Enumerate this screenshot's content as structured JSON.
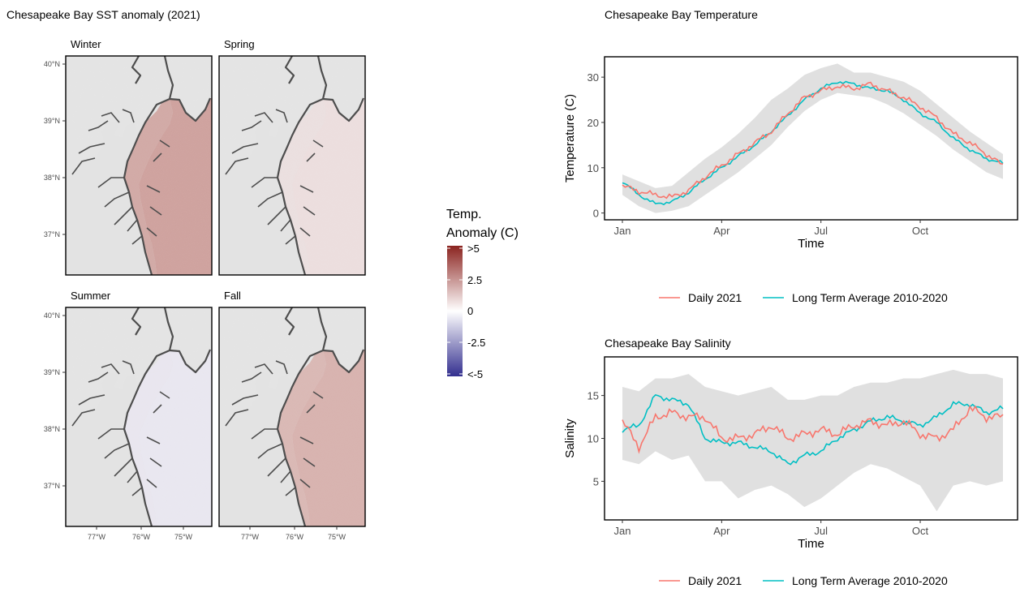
{
  "figure": {
    "map_title": "Chesapeake Bay SST anomaly (2021)",
    "temp_title": "Chesapeake Bay Temperature",
    "sal_title": "Chesapeake Bay Salinity"
  },
  "map_panels": {
    "facets": [
      "Winter",
      "Spring",
      "Summer",
      "Fall"
    ],
    "lat_ticks": [
      "40°N",
      "39°N",
      "38°N",
      "37°N"
    ],
    "lon_ticks": [
      "77°W",
      "76°W",
      "75°W"
    ],
    "anomaly_tint": {
      "Winter": "#c9938e",
      "Spring": "#ecdcdc",
      "Summer": "#e9e6f1",
      "Fall": "#d4a7a2"
    },
    "land_color": "#e3e3e3",
    "coast_color": "#4d4d4d"
  },
  "legend_colorbar": {
    "title_line1": "Temp.",
    "title_line2": "Anomaly (C)",
    "labels": [
      ">5",
      "2.5",
      "0",
      "-2.5",
      "<-5"
    ],
    "colors": {
      "high": "#8b2420",
      "mid": "#ffffff",
      "low": "#332f8f"
    }
  },
  "legend_series": {
    "daily": "Daily 2021",
    "average": "Long Term Average 2010-2020",
    "daily_color": "#f8766d",
    "average_color": "#00bfc4",
    "ribbon_color": "#e0e0e0"
  },
  "chart_data": [
    {
      "type": "line",
      "title": "Chesapeake Bay Temperature",
      "xlabel": "Time",
      "ylabel": "Temperature (C)",
      "x_ticks": [
        "Jan",
        "Apr",
        "Jul",
        "Oct"
      ],
      "y_ticks": [
        0,
        10,
        20,
        30
      ],
      "ylim": [
        -1.5,
        34.5
      ],
      "grid": false,
      "legend": "bottom",
      "x": [
        "Jan 1",
        "Jan 15",
        "Feb 1",
        "Feb 15",
        "Mar 1",
        "Mar 15",
        "Apr 1",
        "Apr 15",
        "May 1",
        "May 15",
        "Jun 1",
        "Jun 15",
        "Jul 1",
        "Jul 15",
        "Aug 1",
        "Aug 15",
        "Sep 1",
        "Sep 15",
        "Oct 1",
        "Oct 15",
        "Nov 1",
        "Nov 15",
        "Dec 1",
        "Dec 15"
      ],
      "series": [
        {
          "name": "Daily 2021",
          "values": [
            6,
            4.8,
            4,
            3.5,
            5,
            8,
            10.5,
            13,
            15.5,
            18,
            22,
            25.5,
            27,
            28,
            27.5,
            28.5,
            27,
            25.5,
            23.5,
            21,
            17.5,
            15.5,
            13,
            10.5
          ]
        },
        {
          "name": "Long Term Average 2010-2020",
          "values": [
            7,
            4,
            2,
            2.5,
            4.5,
            7.5,
            10,
            12.5,
            15,
            18,
            21.5,
            25,
            27.5,
            29,
            28.5,
            27.5,
            27,
            25,
            22,
            20,
            16.5,
            14,
            12,
            11
          ]
        },
        {
          "name": "range_low",
          "values": [
            4,
            1.5,
            0,
            0.5,
            1.5,
            4,
            6.5,
            9,
            12,
            15,
            19,
            22.5,
            25,
            26.5,
            26,
            25.5,
            24,
            22,
            19.5,
            17,
            14,
            11.5,
            9,
            7.5
          ]
        },
        {
          "name": "range_high",
          "values": [
            8.5,
            7,
            5.5,
            6,
            9,
            12,
            14.5,
            17.5,
            21,
            25,
            27.5,
            30.5,
            32,
            33,
            31,
            31,
            30,
            29,
            27,
            24,
            21,
            18,
            15.5,
            13
          ]
        }
      ]
    },
    {
      "type": "line",
      "title": "Chesapeake Bay Salinity",
      "xlabel": "Time",
      "ylabel": "Salinity",
      "x_ticks": [
        "Jan",
        "Apr",
        "Jul",
        "Oct"
      ],
      "y_ticks": [
        5,
        10,
        15
      ],
      "ylim": [
        0.5,
        19.5
      ],
      "grid": false,
      "legend": "bottom",
      "x": [
        "Jan 1",
        "Jan 15",
        "Feb 1",
        "Feb 15",
        "Mar 1",
        "Mar 15",
        "Apr 1",
        "Apr 15",
        "May 1",
        "May 15",
        "Jun 1",
        "Jun 15",
        "Jul 1",
        "Jul 15",
        "Aug 1",
        "Aug 15",
        "Sep 1",
        "Sep 15",
        "Oct 1",
        "Oct 15",
        "Nov 1",
        "Nov 15",
        "Dec 1",
        "Dec 15"
      ],
      "series": [
        {
          "name": "Daily 2021",
          "values": [
            12,
            9,
            12.5,
            13,
            12.5,
            12.5,
            10,
            10,
            10.5,
            11.5,
            10,
            10.5,
            11,
            10.5,
            11.5,
            12,
            11.5,
            12,
            10.5,
            10,
            11,
            13.5,
            12.5,
            12.5
          ]
        },
        {
          "name": "Long Term Average 2010-2020",
          "values": [
            11,
            11.5,
            15,
            14.5,
            14,
            10,
            9.5,
            9.5,
            9,
            8.5,
            7,
            8,
            8.5,
            10,
            11,
            12,
            12.5,
            12,
            11.5,
            12.5,
            14,
            14,
            13,
            13.5
          ]
        },
        {
          "name": "range_low",
          "values": [
            7.5,
            7,
            8.5,
            7.5,
            8,
            5,
            5,
            3,
            4,
            4.5,
            3.5,
            2,
            3,
            4.5,
            6,
            7,
            6.5,
            5.5,
            4.5,
            1.5,
            4.5,
            5,
            4.5,
            5
          ]
        },
        {
          "name": "range_high",
          "values": [
            16,
            15.5,
            17,
            17,
            17.5,
            16,
            15.5,
            15,
            15.5,
            16,
            14.5,
            14.5,
            15,
            15,
            16,
            16.5,
            16.5,
            17,
            17,
            17.5,
            18,
            17.5,
            17.5,
            17
          ]
        }
      ]
    }
  ]
}
